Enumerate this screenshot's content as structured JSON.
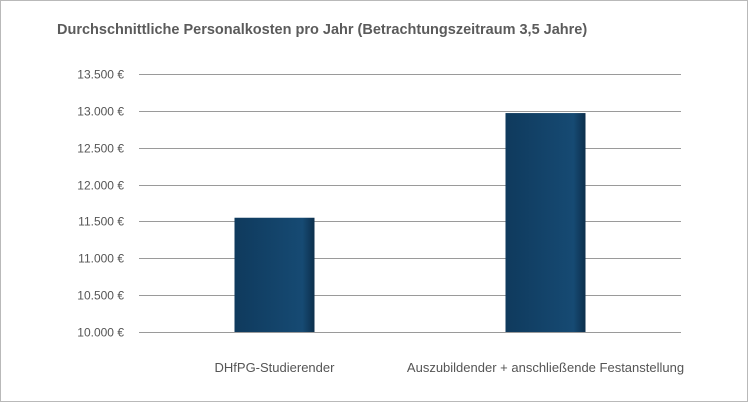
{
  "chart_data": {
    "type": "bar",
    "title": "Durchschnittliche Personalkosten pro Jahr (Betrachtungszeitraum 3,5 Jahre)",
    "xlabel": "",
    "ylabel": "",
    "categories": [
      "DHfPG-Studierender",
      "Auszubildender + anschließende Festanstellung"
    ],
    "values": [
      11550,
      12970
    ],
    "ylim": [
      10000,
      13500
    ],
    "yticks": [
      10000,
      10500,
      11000,
      11500,
      12000,
      12500,
      13000,
      13500
    ],
    "ytick_labels": [
      "10.000 €",
      "10.500 €",
      "11.000 €",
      "11.500 €",
      "12.000 €",
      "12.500 €",
      "13.000 €",
      "13.500 €"
    ],
    "grid": true,
    "legend": "none",
    "bar_color": "#123f63"
  }
}
